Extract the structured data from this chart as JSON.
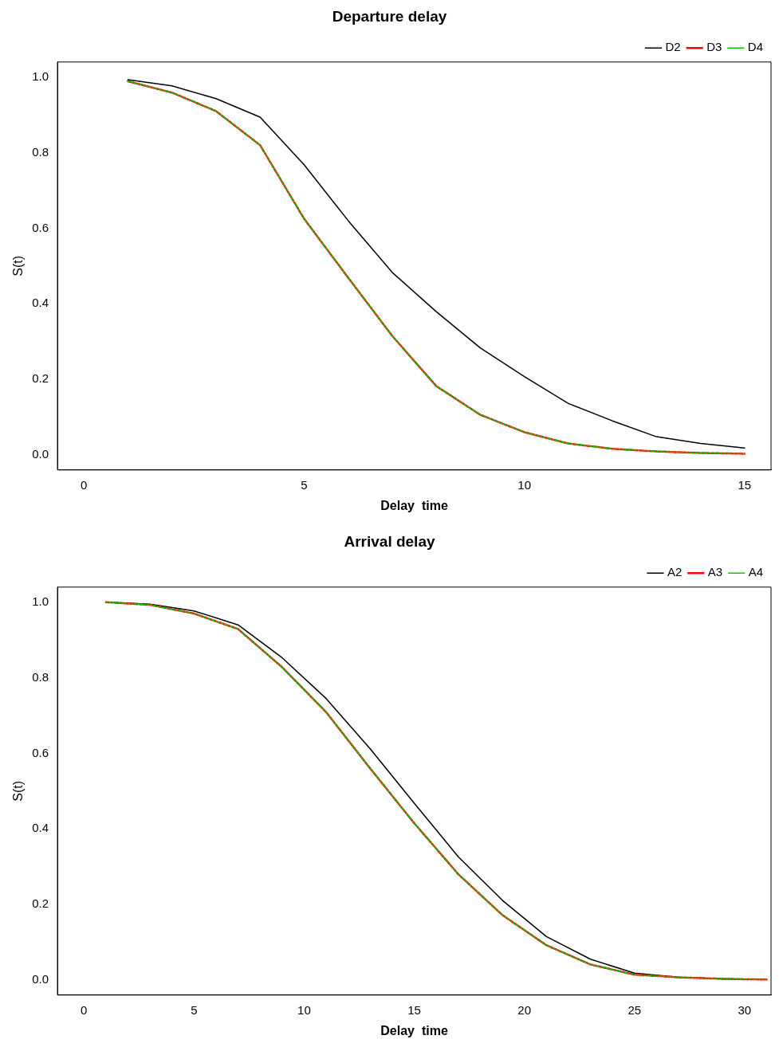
{
  "chart_data": [
    {
      "type": "line",
      "title": "Departure delay",
      "xlabel": "Delay  time",
      "ylabel": "S(t)",
      "x": [
        1,
        2,
        3,
        4,
        5,
        6,
        7,
        8,
        9,
        10,
        11,
        12,
        13,
        14,
        15
      ],
      "xlim": [
        -0.6,
        15.6
      ],
      "xticks": [
        0,
        5,
        10,
        15
      ],
      "ylim": [
        -0.04,
        1.04
      ],
      "yticks": [
        {
          "value": 0,
          "label": "0.0"
        },
        {
          "value": 0.2,
          "label": "0.2"
        },
        {
          "value": 0.4,
          "label": "0.4"
        },
        {
          "value": 0.6,
          "label": "0.6"
        },
        {
          "value": 0.8,
          "label": "0.8"
        },
        {
          "value": 1,
          "label": "1.0"
        }
      ],
      "grid": false,
      "legend": "top right",
      "marker": "none",
      "series": [
        {
          "name": "D2",
          "color": "#000000",
          "line_style": "solid",
          "values": [
            0.993,
            0.977,
            0.943,
            0.894,
            0.768,
            0.62,
            0.483,
            0.379,
            0.283,
            0.207,
            0.136,
            0.09,
            0.048,
            0.03,
            0.018
          ]
        },
        {
          "name": "D3",
          "color": "#ff0000",
          "line_style": "dashed",
          "values": [
            0.989,
            0.959,
            0.91,
            0.82,
            0.625,
            0.469,
            0.315,
            0.182,
            0.106,
            0.06,
            0.03,
            0.016,
            0.009,
            0.005,
            0.003
          ]
        },
        {
          "name": "D4",
          "color": "#00cd00",
          "line_style": "dotted",
          "values": [
            0.989,
            0.959,
            0.91,
            0.82,
            0.625,
            0.469,
            0.315,
            0.182,
            0.106,
            0.06,
            0.03,
            0.016,
            0.009,
            0.005,
            0.003
          ]
        }
      ]
    },
    {
      "type": "line",
      "title": "Arrival delay",
      "xlabel": "Delay  time",
      "ylabel": "S(t)",
      "x": [
        1,
        3,
        5,
        7,
        9,
        11,
        13,
        15,
        17,
        19,
        21,
        23,
        25,
        27,
        29,
        31
      ],
      "xlim": [
        -1.2,
        31.2
      ],
      "xticks": [
        0,
        5,
        10,
        15,
        20,
        25,
        30
      ],
      "ylim": [
        -0.04,
        1.04
      ],
      "yticks": [
        {
          "value": 0,
          "label": "0.0"
        },
        {
          "value": 0.2,
          "label": "0.2"
        },
        {
          "value": 0.4,
          "label": "0.4"
        },
        {
          "value": 0.6,
          "label": "0.6"
        },
        {
          "value": 0.8,
          "label": "0.8"
        },
        {
          "value": 1,
          "label": "1.0"
        }
      ],
      "grid": false,
      "legend": "top right",
      "marker": "none",
      "series": [
        {
          "name": "A2",
          "color": "#000000",
          "line_style": "solid",
          "values": [
            1.0,
            0.995,
            0.977,
            0.94,
            0.853,
            0.745,
            0.612,
            0.468,
            0.326,
            0.211,
            0.115,
            0.055,
            0.018,
            0.007,
            0.003,
            0.001
          ]
        },
        {
          "name": "A3",
          "color": "#ff0000",
          "line_style": "dashed",
          "values": [
            1.0,
            0.993,
            0.97,
            0.929,
            0.828,
            0.709,
            0.56,
            0.415,
            0.28,
            0.172,
            0.092,
            0.041,
            0.014,
            0.007,
            0.003,
            0.001
          ]
        },
        {
          "name": "A4",
          "color": "#00cd00",
          "line_style": "dotted",
          "values": [
            1.0,
            0.993,
            0.97,
            0.929,
            0.828,
            0.709,
            0.56,
            0.415,
            0.28,
            0.172,
            0.092,
            0.041,
            0.014,
            0.007,
            0.003,
            0.001
          ]
        }
      ]
    }
  ]
}
